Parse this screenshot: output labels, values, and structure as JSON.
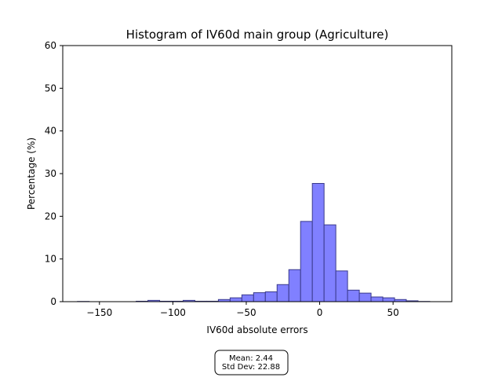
{
  "chart_data": {
    "type": "bar",
    "title": "Histogram of IV60d main group (Agriculture)",
    "xlabel": "IV60d absolute errors",
    "ylabel": "Percentage (%)",
    "xlim": [
      -175,
      90
    ],
    "ylim": [
      0,
      60
    ],
    "x_ticks": [
      -150,
      -100,
      -50,
      0,
      50
    ],
    "x_tick_labels": [
      "−150",
      "−100",
      "−50",
      "0",
      "50"
    ],
    "y_ticks": [
      0,
      10,
      20,
      30,
      40,
      50,
      60
    ],
    "y_tick_labels": [
      "0",
      "10",
      "20",
      "30",
      "40",
      "50",
      "60"
    ],
    "grid": false,
    "bar_color": "#8080ff",
    "bar_edge_color": "#3a3a8c",
    "bins": [
      {
        "x0": -165,
        "x1": -157,
        "value": 0.05
      },
      {
        "x0": -157,
        "x1": -149,
        "value": 0.0
      },
      {
        "x0": -149,
        "x1": -141,
        "value": 0.0
      },
      {
        "x0": -141,
        "x1": -133,
        "value": 0.0
      },
      {
        "x0": -133,
        "x1": -125,
        "value": 0.0
      },
      {
        "x0": -125,
        "x1": -117,
        "value": 0.1
      },
      {
        "x0": -117,
        "x1": -109,
        "value": 0.3
      },
      {
        "x0": -109,
        "x1": -101,
        "value": 0.1
      },
      {
        "x0": -101,
        "x1": -93,
        "value": 0.1
      },
      {
        "x0": -93,
        "x1": -85,
        "value": 0.3
      },
      {
        "x0": -85,
        "x1": -77,
        "value": 0.1
      },
      {
        "x0": -77,
        "x1": -69,
        "value": 0.1
      },
      {
        "x0": -69,
        "x1": -61,
        "value": 0.5
      },
      {
        "x0": -61,
        "x1": -53,
        "value": 0.9
      },
      {
        "x0": -53,
        "x1": -45,
        "value": 1.6
      },
      {
        "x0": -45,
        "x1": -37,
        "value": 2.1
      },
      {
        "x0": -37,
        "x1": -29,
        "value": 2.3
      },
      {
        "x0": -29,
        "x1": -21,
        "value": 4.0
      },
      {
        "x0": -21,
        "x1": -13,
        "value": 7.5
      },
      {
        "x0": -13,
        "x1": -5,
        "value": 18.8
      },
      {
        "x0": -5,
        "x1": 3,
        "value": 27.7
      },
      {
        "x0": 3,
        "x1": 11,
        "value": 18.0
      },
      {
        "x0": 11,
        "x1": 19,
        "value": 7.2
      },
      {
        "x0": 19,
        "x1": 27,
        "value": 2.7
      },
      {
        "x0": 27,
        "x1": 35,
        "value": 2.0
      },
      {
        "x0": 35,
        "x1": 43,
        "value": 1.1
      },
      {
        "x0": 43,
        "x1": 51,
        "value": 0.9
      },
      {
        "x0": 51,
        "x1": 59,
        "value": 0.5
      },
      {
        "x0": 59,
        "x1": 67,
        "value": 0.2
      },
      {
        "x0": 67,
        "x1": 75,
        "value": 0.05
      }
    ],
    "annotation": {
      "mean_text": "Mean: 2.44",
      "std_text": "Std Dev: 22.88"
    }
  }
}
